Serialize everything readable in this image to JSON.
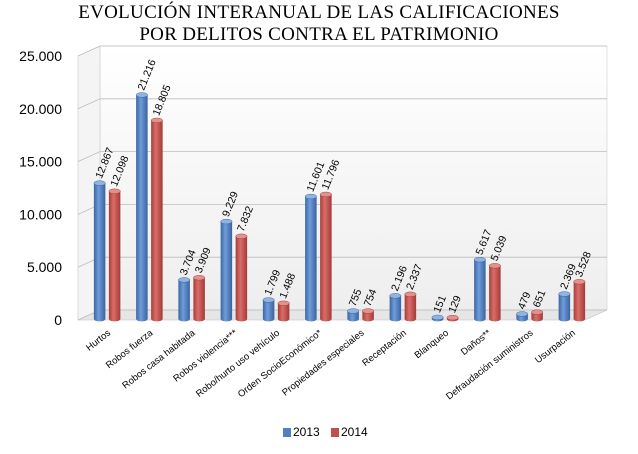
{
  "chart_data": {
    "type": "bar",
    "title_lines": [
      "EVOLUCIÓN INTERANUAL DE LAS CALIFICACIONES",
      "POR DELITOS CONTRA EL PATRIMONIO"
    ],
    "categories": [
      "Hurtos",
      "Robos fuerza",
      "Robos casa habitada",
      "Robos violencia***",
      "Robo/hurto uso vehículo",
      "Orden SocioEconómico*",
      "Propiedades especiales",
      "Receptación",
      "Blanqueo",
      "Daños**",
      "Defraudación suministros",
      "Usurpación"
    ],
    "series": [
      {
        "name": "2013",
        "values": [
          12867,
          21216,
          3704,
          9229,
          1799,
          11601,
          755,
          2196,
          151,
          5617,
          479,
          2369
        ],
        "labels": [
          "12.867",
          "21.216",
          "3.704",
          "9.229",
          "1.799",
          "11.601",
          "755",
          "2.196",
          "151",
          "5.617",
          "479",
          "2.369"
        ]
      },
      {
        "name": "2014",
        "values": [
          12098,
          18805,
          3909,
          7832,
          1488,
          11796,
          754,
          2337,
          129,
          5039,
          651,
          3528
        ],
        "labels": [
          "12.098",
          "18.805",
          "3.909",
          "7.832",
          "1.488",
          "11.796",
          "754",
          "2.337",
          "129",
          "5.039",
          "651",
          "3.528"
        ]
      }
    ],
    "yticks": [
      "0",
      "5.000",
      "10.000",
      "15.000",
      "20.000",
      "25.000"
    ],
    "ytick_values": [
      0,
      5000,
      10000,
      15000,
      20000,
      25000
    ],
    "ylim": [
      0,
      25000
    ],
    "grid": true,
    "legend_position": "bottom",
    "colors": {
      "series_2013": "#4F81BD",
      "series_2014": "#C0504D",
      "grid": "#bdbdbd",
      "wall": "#f2f2f2"
    }
  }
}
